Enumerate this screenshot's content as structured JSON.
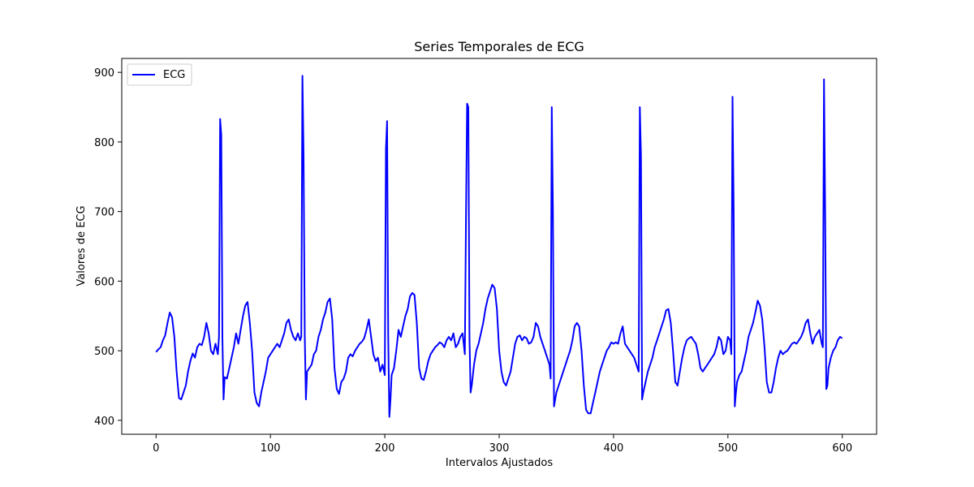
{
  "chart_data": {
    "type": "line",
    "title": "Series Temporales de ECG",
    "xlabel": "Intervalos Ajustados",
    "ylabel": "Valores de ECG",
    "xlim": [
      -30,
      630
    ],
    "ylim": [
      380,
      920
    ],
    "xticks": [
      0,
      100,
      200,
      300,
      400,
      500,
      600
    ],
    "yticks": [
      400,
      500,
      600,
      700,
      800,
      900
    ],
    "grid": false,
    "legend_position": "top-left",
    "series": [
      {
        "name": "ECG",
        "color": "#0000ff",
        "points": [
          [
            0,
            498
          ],
          [
            2,
            502
          ],
          [
            4,
            505
          ],
          [
            6,
            515
          ],
          [
            8,
            522
          ],
          [
            10,
            540
          ],
          [
            12,
            555
          ],
          [
            14,
            548
          ],
          [
            16,
            520
          ],
          [
            18,
            470
          ],
          [
            20,
            432
          ],
          [
            22,
            430
          ],
          [
            24,
            440
          ],
          [
            26,
            450
          ],
          [
            28,
            470
          ],
          [
            30,
            485
          ],
          [
            32,
            496
          ],
          [
            34,
            490
          ],
          [
            36,
            505
          ],
          [
            38,
            510
          ],
          [
            40,
            508
          ],
          [
            42,
            520
          ],
          [
            44,
            540
          ],
          [
            46,
            525
          ],
          [
            48,
            500
          ],
          [
            50,
            495
          ],
          [
            52,
            510
          ],
          [
            54,
            495
          ],
          [
            55,
            520
          ],
          [
            56,
            833
          ],
          [
            57,
            810
          ],
          [
            58,
            520
          ],
          [
            59,
            430
          ],
          [
            60,
            462
          ],
          [
            62,
            460
          ],
          [
            64,
            475
          ],
          [
            66,
            490
          ],
          [
            68,
            505
          ],
          [
            70,
            525
          ],
          [
            72,
            510
          ],
          [
            74,
            530
          ],
          [
            76,
            550
          ],
          [
            78,
            565
          ],
          [
            80,
            570
          ],
          [
            82,
            540
          ],
          [
            84,
            500
          ],
          [
            86,
            440
          ],
          [
            88,
            425
          ],
          [
            90,
            420
          ],
          [
            92,
            440
          ],
          [
            94,
            455
          ],
          [
            96,
            470
          ],
          [
            98,
            490
          ],
          [
            100,
            495
          ],
          [
            102,
            500
          ],
          [
            104,
            505
          ],
          [
            106,
            510
          ],
          [
            108,
            505
          ],
          [
            110,
            515
          ],
          [
            112,
            525
          ],
          [
            114,
            540
          ],
          [
            116,
            545
          ],
          [
            118,
            530
          ],
          [
            120,
            520
          ],
          [
            122,
            515
          ],
          [
            124,
            525
          ],
          [
            126,
            515
          ],
          [
            127,
            520
          ],
          [
            128,
            895
          ],
          [
            129,
            780
          ],
          [
            130,
            520
          ],
          [
            131,
            430
          ],
          [
            132,
            470
          ],
          [
            134,
            475
          ],
          [
            136,
            480
          ],
          [
            138,
            495
          ],
          [
            140,
            500
          ],
          [
            142,
            520
          ],
          [
            144,
            530
          ],
          [
            146,
            545
          ],
          [
            148,
            555
          ],
          [
            150,
            570
          ],
          [
            152,
            575
          ],
          [
            154,
            545
          ],
          [
            156,
            475
          ],
          [
            158,
            445
          ],
          [
            160,
            438
          ],
          [
            162,
            455
          ],
          [
            164,
            460
          ],
          [
            166,
            470
          ],
          [
            168,
            490
          ],
          [
            170,
            495
          ],
          [
            172,
            492
          ],
          [
            174,
            500
          ],
          [
            176,
            505
          ],
          [
            178,
            510
          ],
          [
            180,
            513
          ],
          [
            182,
            518
          ],
          [
            184,
            530
          ],
          [
            186,
            545
          ],
          [
            188,
            520
          ],
          [
            190,
            495
          ],
          [
            192,
            485
          ],
          [
            194,
            490
          ],
          [
            196,
            470
          ],
          [
            198,
            480
          ],
          [
            200,
            465
          ],
          [
            201,
            790
          ],
          [
            202,
            830
          ],
          [
            203,
            520
          ],
          [
            204,
            405
          ],
          [
            205,
            430
          ],
          [
            206,
            465
          ],
          [
            208,
            475
          ],
          [
            210,
            500
          ],
          [
            212,
            530
          ],
          [
            214,
            520
          ],
          [
            216,
            535
          ],
          [
            218,
            550
          ],
          [
            220,
            560
          ],
          [
            222,
            578
          ],
          [
            224,
            583
          ],
          [
            226,
            580
          ],
          [
            228,
            540
          ],
          [
            230,
            475
          ],
          [
            232,
            460
          ],
          [
            234,
            458
          ],
          [
            236,
            470
          ],
          [
            238,
            485
          ],
          [
            240,
            495
          ],
          [
            242,
            500
          ],
          [
            244,
            505
          ],
          [
            246,
            508
          ],
          [
            248,
            512
          ],
          [
            250,
            510
          ],
          [
            252,
            505
          ],
          [
            254,
            515
          ],
          [
            256,
            520
          ],
          [
            258,
            515
          ],
          [
            260,
            525
          ],
          [
            262,
            505
          ],
          [
            264,
            510
          ],
          [
            266,
            520
          ],
          [
            268,
            525
          ],
          [
            270,
            495
          ],
          [
            271,
            690
          ],
          [
            272,
            855
          ],
          [
            273,
            850
          ],
          [
            274,
            520
          ],
          [
            275,
            440
          ],
          [
            276,
            450
          ],
          [
            278,
            480
          ],
          [
            280,
            500
          ],
          [
            282,
            510
          ],
          [
            284,
            525
          ],
          [
            286,
            540
          ],
          [
            288,
            560
          ],
          [
            290,
            575
          ],
          [
            292,
            585
          ],
          [
            294,
            595
          ],
          [
            296,
            590
          ],
          [
            298,
            560
          ],
          [
            300,
            500
          ],
          [
            302,
            470
          ],
          [
            304,
            455
          ],
          [
            306,
            450
          ],
          [
            308,
            460
          ],
          [
            310,
            470
          ],
          [
            312,
            490
          ],
          [
            314,
            510
          ],
          [
            316,
            520
          ],
          [
            318,
            522
          ],
          [
            320,
            515
          ],
          [
            322,
            520
          ],
          [
            324,
            518
          ],
          [
            326,
            510
          ],
          [
            328,
            512
          ],
          [
            330,
            520
          ],
          [
            332,
            540
          ],
          [
            334,
            535
          ],
          [
            336,
            520
          ],
          [
            338,
            510
          ],
          [
            340,
            500
          ],
          [
            342,
            490
          ],
          [
            344,
            480
          ],
          [
            345,
            460
          ],
          [
            346,
            850
          ],
          [
            347,
            700
          ],
          [
            348,
            420
          ],
          [
            349,
            430
          ],
          [
            350,
            440
          ],
          [
            352,
            450
          ],
          [
            354,
            460
          ],
          [
            356,
            470
          ],
          [
            358,
            480
          ],
          [
            360,
            490
          ],
          [
            362,
            500
          ],
          [
            364,
            515
          ],
          [
            366,
            535
          ],
          [
            368,
            540
          ],
          [
            370,
            535
          ],
          [
            372,
            500
          ],
          [
            374,
            450
          ],
          [
            376,
            415
          ],
          [
            378,
            410
          ],
          [
            380,
            410
          ],
          [
            382,
            425
          ],
          [
            384,
            440
          ],
          [
            386,
            455
          ],
          [
            388,
            470
          ],
          [
            390,
            480
          ],
          [
            392,
            490
          ],
          [
            394,
            500
          ],
          [
            396,
            505
          ],
          [
            398,
            512
          ],
          [
            400,
            510
          ],
          [
            402,
            512
          ],
          [
            404,
            510
          ],
          [
            406,
            525
          ],
          [
            408,
            535
          ],
          [
            410,
            510
          ],
          [
            412,
            505
          ],
          [
            414,
            500
          ],
          [
            416,
            495
          ],
          [
            418,
            490
          ],
          [
            420,
            480
          ],
          [
            422,
            470
          ],
          [
            423,
            850
          ],
          [
            424,
            780
          ],
          [
            425,
            430
          ],
          [
            426,
            440
          ],
          [
            428,
            455
          ],
          [
            430,
            470
          ],
          [
            432,
            480
          ],
          [
            434,
            490
          ],
          [
            436,
            505
          ],
          [
            438,
            515
          ],
          [
            440,
            525
          ],
          [
            442,
            535
          ],
          [
            444,
            545
          ],
          [
            446,
            558
          ],
          [
            448,
            560
          ],
          [
            450,
            540
          ],
          [
            452,
            500
          ],
          [
            454,
            455
          ],
          [
            456,
            450
          ],
          [
            458,
            470
          ],
          [
            460,
            490
          ],
          [
            462,
            505
          ],
          [
            464,
            515
          ],
          [
            466,
            518
          ],
          [
            468,
            520
          ],
          [
            470,
            515
          ],
          [
            472,
            510
          ],
          [
            474,
            495
          ],
          [
            476,
            475
          ],
          [
            478,
            470
          ],
          [
            480,
            475
          ],
          [
            482,
            480
          ],
          [
            484,
            485
          ],
          [
            486,
            490
          ],
          [
            488,
            495
          ],
          [
            490,
            505
          ],
          [
            492,
            520
          ],
          [
            494,
            515
          ],
          [
            496,
            495
          ],
          [
            498,
            500
          ],
          [
            500,
            520
          ],
          [
            502,
            515
          ],
          [
            503,
            495
          ],
          [
            504,
            865
          ],
          [
            505,
            700
          ],
          [
            506,
            420
          ],
          [
            507,
            440
          ],
          [
            508,
            455
          ],
          [
            510,
            465
          ],
          [
            512,
            470
          ],
          [
            514,
            485
          ],
          [
            516,
            500
          ],
          [
            518,
            520
          ],
          [
            520,
            530
          ],
          [
            522,
            540
          ],
          [
            524,
            555
          ],
          [
            526,
            572
          ],
          [
            528,
            565
          ],
          [
            530,
            545
          ],
          [
            532,
            505
          ],
          [
            534,
            455
          ],
          [
            536,
            440
          ],
          [
            538,
            440
          ],
          [
            540,
            455
          ],
          [
            542,
            475
          ],
          [
            544,
            490
          ],
          [
            546,
            500
          ],
          [
            548,
            495
          ],
          [
            550,
            498
          ],
          [
            552,
            500
          ],
          [
            554,
            505
          ],
          [
            556,
            510
          ],
          [
            558,
            512
          ],
          [
            560,
            510
          ],
          [
            562,
            515
          ],
          [
            564,
            520
          ],
          [
            566,
            528
          ],
          [
            568,
            540
          ],
          [
            570,
            545
          ],
          [
            572,
            525
          ],
          [
            574,
            510
          ],
          [
            576,
            520
          ],
          [
            578,
            525
          ],
          [
            580,
            530
          ],
          [
            582,
            510
          ],
          [
            583,
            505
          ],
          [
            584,
            890
          ],
          [
            585,
            700
          ],
          [
            586,
            445
          ],
          [
            587,
            450
          ],
          [
            588,
            475
          ],
          [
            590,
            490
          ],
          [
            592,
            500
          ],
          [
            594,
            505
          ],
          [
            596,
            515
          ],
          [
            598,
            520
          ],
          [
            600,
            518
          ]
        ]
      }
    ]
  }
}
